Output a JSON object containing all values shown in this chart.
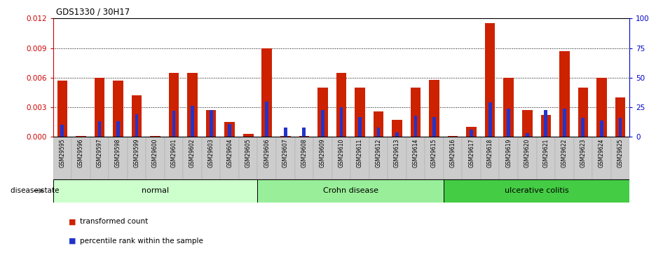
{
  "title": "GDS1330 / 30H17",
  "categories": [
    "GSM29595",
    "GSM29596",
    "GSM29597",
    "GSM29598",
    "GSM29599",
    "GSM29600",
    "GSM29601",
    "GSM29602",
    "GSM29603",
    "GSM29604",
    "GSM29605",
    "GSM29606",
    "GSM29607",
    "GSM29608",
    "GSM29609",
    "GSM29610",
    "GSM29611",
    "GSM29612",
    "GSM29613",
    "GSM29614",
    "GSM29615",
    "GSM29616",
    "GSM29617",
    "GSM29618",
    "GSM29619",
    "GSM29620",
    "GSM29621",
    "GSM29622",
    "GSM29623",
    "GSM29624",
    "GSM29625"
  ],
  "red_values": [
    0.0057,
    0.0001,
    0.006,
    0.0057,
    0.0042,
    0.0001,
    0.0065,
    0.0065,
    0.0027,
    0.0015,
    0.0003,
    0.009,
    0.0001,
    0.0001,
    0.005,
    0.0065,
    0.005,
    0.0026,
    0.0017,
    0.005,
    0.0058,
    0.0001,
    0.001,
    0.0115,
    0.006,
    0.0027,
    0.0022,
    0.0087,
    0.005,
    0.006,
    0.004
  ],
  "blue_percentiles": [
    10,
    0,
    13,
    13,
    19,
    0,
    22,
    26,
    23,
    11,
    0,
    30,
    8,
    8,
    23,
    25,
    17,
    8,
    4,
    18,
    17,
    0,
    6,
    29,
    24,
    3,
    23,
    24,
    16,
    14,
    16
  ],
  "groups": [
    {
      "label": "normal",
      "start": 0,
      "end": 10,
      "color": "#ccffcc"
    },
    {
      "label": "Crohn disease",
      "start": 11,
      "end": 20,
      "color": "#99ee99"
    },
    {
      "label": "ulcerative colitis",
      "start": 21,
      "end": 30,
      "color": "#44cc44"
    }
  ],
  "ylim_left": [
    0,
    0.012
  ],
  "ylim_right": [
    0,
    100
  ],
  "yticks_left": [
    0.0,
    0.003,
    0.006,
    0.009,
    0.012
  ],
  "yticks_right": [
    0,
    25,
    50,
    75,
    100
  ],
  "left_axis_color": "#cc0000",
  "right_axis_color": "#0000cc",
  "bar_color_red": "#cc2200",
  "bar_color_blue": "#2233cc",
  "legend_label_red": "transformed count",
  "legend_label_blue": "percentile rank within the sample",
  "disease_state_label": "disease state"
}
